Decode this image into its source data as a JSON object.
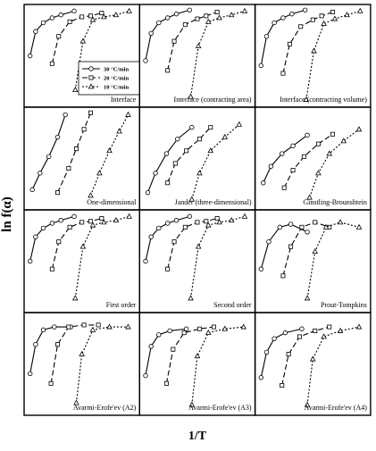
{
  "ylabel": "ln f(α)",
  "xlabel": "1/T",
  "chart_data": [
    {
      "type": "line",
      "title": "Interface",
      "xlim": [
        0,
        100
      ],
      "ylim": [
        0,
        100
      ],
      "series": [
        {
          "name": "30 °C/min",
          "color": "#000",
          "x": [
            3,
            8,
            15,
            23,
            31,
            43
          ],
          "y": [
            50,
            75,
            84,
            89,
            92,
            96
          ]
        },
        {
          "name": "20 °C/min",
          "color": "#000",
          "x": [
            23,
            29,
            39,
            50,
            58,
            68
          ],
          "y": [
            42,
            70,
            85,
            90,
            91,
            94
          ]
        },
        {
          "name": "10 °C/min",
          "color": "#000",
          "x": [
            44,
            51,
            60,
            70,
            81,
            93
          ],
          "y": [
            15,
            65,
            87,
            90,
            92,
            96
          ]
        }
      ]
    },
    {
      "type": "line",
      "title": "Interface  (contracting area)",
      "xlim": [
        0,
        100
      ],
      "ylim": [
        0,
        100
      ],
      "series": [
        {
          "color": "#000",
          "x": [
            3,
            8,
            15,
            23,
            31,
            43
          ],
          "y": [
            45,
            73,
            84,
            89,
            93,
            97
          ]
        },
        {
          "color": "#000",
          "x": [
            23,
            29,
            39,
            50,
            58,
            68
          ],
          "y": [
            35,
            65,
            82,
            88,
            91,
            95
          ]
        },
        {
          "color": "#000",
          "x": [
            44,
            51,
            60,
            70,
            81,
            93
          ],
          "y": [
            8,
            60,
            85,
            89,
            92,
            96
          ]
        }
      ]
    },
    {
      "type": "line",
      "title": "Interface  (contracting volume)",
      "xlim": [
        0,
        100
      ],
      "ylim": [
        0,
        100
      ],
      "series": [
        {
          "color": "#000",
          "x": [
            3,
            8,
            15,
            23,
            31,
            43
          ],
          "y": [
            40,
            70,
            84,
            89,
            93,
            97
          ]
        },
        {
          "color": "#000",
          "x": [
            23,
            29,
            39,
            50,
            58,
            68
          ],
          "y": [
            32,
            62,
            80,
            87,
            91,
            95
          ]
        },
        {
          "color": "#000",
          "x": [
            44,
            51,
            60,
            70,
            81,
            93
          ],
          "y": [
            5,
            55,
            83,
            88,
            92,
            96
          ]
        }
      ]
    },
    {
      "type": "line",
      "title": "One-dimensional",
      "xlim": [
        0,
        100
      ],
      "ylim": [
        0,
        100
      ],
      "series": [
        {
          "color": "#000",
          "x": [
            5,
            12,
            20,
            28,
            35
          ],
          "y": [
            18,
            35,
            52,
            72,
            95
          ]
        },
        {
          "color": "#000",
          "x": [
            28,
            38,
            45,
            52,
            58
          ],
          "y": [
            15,
            40,
            60,
            80,
            97
          ]
        },
        {
          "color": "#000",
          "x": [
            58,
            66,
            75,
            84,
            92
          ],
          "y": [
            12,
            35,
            58,
            78,
            95
          ]
        }
      ]
    },
    {
      "type": "line",
      "title": "Jander (three-dimensional)",
      "xlim": [
        0,
        100
      ],
      "ylim": [
        0,
        100
      ],
      "series": [
        {
          "color": "#000",
          "x": [
            5,
            12,
            22,
            32,
            45
          ],
          "y": [
            15,
            35,
            55,
            70,
            82
          ]
        },
        {
          "color": "#000",
          "x": [
            23,
            30,
            40,
            52,
            62
          ],
          "y": [
            25,
            45,
            58,
            70,
            82
          ]
        },
        {
          "color": "#000",
          "x": [
            45,
            52,
            62,
            75,
            88
          ],
          "y": [
            8,
            35,
            58,
            72,
            85
          ]
        }
      ]
    },
    {
      "type": "line",
      "title": "Ginstling-Brounshtein",
      "xlim": [
        0,
        100
      ],
      "ylim": [
        0,
        100
      ],
      "series": [
        {
          "color": "#000",
          "x": [
            5,
            12,
            22,
            32,
            45
          ],
          "y": [
            25,
            42,
            55,
            63,
            74
          ]
        },
        {
          "color": "#000",
          "x": [
            24,
            32,
            42,
            55,
            68
          ],
          "y": [
            20,
            38,
            52,
            65,
            75
          ]
        },
        {
          "color": "#000",
          "x": [
            47,
            55,
            65,
            78,
            92
          ],
          "y": [
            10,
            35,
            55,
            68,
            80
          ]
        }
      ]
    },
    {
      "type": "line",
      "title": "First order",
      "xlim": [
        0,
        100
      ],
      "ylim": [
        0,
        100
      ],
      "series": [
        {
          "color": "#000",
          "x": [
            3,
            8,
            15,
            23,
            31,
            43
          ],
          "y": [
            50,
            75,
            84,
            89,
            92,
            96
          ]
        },
        {
          "color": "#000",
          "x": [
            23,
            29,
            39,
            50,
            58,
            68
          ],
          "y": [
            42,
            70,
            85,
            90,
            91,
            94
          ]
        },
        {
          "color": "#000",
          "x": [
            44,
            51,
            60,
            70,
            81,
            93
          ],
          "y": [
            12,
            65,
            87,
            90,
            92,
            96
          ]
        }
      ]
    },
    {
      "type": "line",
      "title": "Second order",
      "xlim": [
        0,
        100
      ],
      "ylim": [
        0,
        100
      ],
      "series": [
        {
          "color": "#000",
          "x": [
            3,
            8,
            15,
            23,
            31,
            43
          ],
          "y": [
            50,
            75,
            84,
            89,
            92,
            96
          ]
        },
        {
          "color": "#000",
          "x": [
            23,
            29,
            39,
            50,
            58,
            68
          ],
          "y": [
            42,
            70,
            85,
            90,
            91,
            94
          ]
        },
        {
          "color": "#000",
          "x": [
            44,
            51,
            60,
            70,
            81,
            93
          ],
          "y": [
            12,
            65,
            87,
            90,
            92,
            96
          ]
        }
      ]
    },
    {
      "type": "line",
      "title": "Prout-Tompkins",
      "xlim": [
        0,
        100
      ],
      "ylim": [
        0,
        100
      ],
      "series": [
        {
          "color": "#000",
          "x": [
            3,
            10,
            20,
            30,
            45
          ],
          "y": [
            42,
            70,
            85,
            88,
            80
          ]
        },
        {
          "color": "#000",
          "x": [
            23,
            30,
            40,
            52,
            65
          ],
          "y": [
            35,
            65,
            85,
            90,
            85
          ]
        },
        {
          "color": "#000",
          "x": [
            45,
            52,
            62,
            75,
            92
          ],
          "y": [
            12,
            60,
            85,
            90,
            85
          ]
        }
      ]
    },
    {
      "type": "line",
      "title": "Avarmi-Erofe'ev (A2)",
      "xlim": [
        0,
        100
      ],
      "ylim": [
        0,
        100
      ],
      "series": [
        {
          "color": "#000",
          "x": [
            3,
            8,
            15,
            25,
            40
          ],
          "y": [
            40,
            70,
            85,
            88,
            88
          ]
        },
        {
          "color": "#000",
          "x": [
            22,
            28,
            38,
            52,
            65
          ],
          "y": [
            30,
            70,
            88,
            90,
            90
          ]
        },
        {
          "color": "#000",
          "x": [
            45,
            50,
            60,
            75,
            92
          ],
          "y": [
            10,
            60,
            85,
            88,
            88
          ]
        }
      ]
    },
    {
      "type": "line",
      "title": "Avarmi-Erofe'ev (A3)",
      "xlim": [
        0,
        100
      ],
      "ylim": [
        0,
        100
      ],
      "series": [
        {
          "color": "#000",
          "x": [
            3,
            8,
            15,
            25,
            40
          ],
          "y": [
            38,
            68,
            80,
            84,
            86
          ]
        },
        {
          "color": "#000",
          "x": [
            22,
            28,
            38,
            52,
            65
          ],
          "y": [
            30,
            65,
            82,
            86,
            88
          ]
        },
        {
          "color": "#000",
          "x": [
            45,
            50,
            60,
            75,
            92
          ],
          "y": [
            8,
            58,
            82,
            86,
            88
          ]
        }
      ]
    },
    {
      "type": "line",
      "title": "Avarmi-Erofe'ev (A4)",
      "xlim": [
        0,
        100
      ],
      "ylim": [
        0,
        100
      ],
      "series": [
        {
          "color": "#000",
          "x": [
            3,
            8,
            15,
            25,
            40
          ],
          "y": [
            36,
            62,
            76,
            82,
            86
          ]
        },
        {
          "color": "#000",
          "x": [
            22,
            28,
            38,
            52,
            65
          ],
          "y": [
            28,
            60,
            78,
            84,
            88
          ]
        },
        {
          "color": "#000",
          "x": [
            45,
            50,
            60,
            75,
            92
          ],
          "y": [
            8,
            55,
            78,
            84,
            88
          ]
        }
      ]
    }
  ]
}
